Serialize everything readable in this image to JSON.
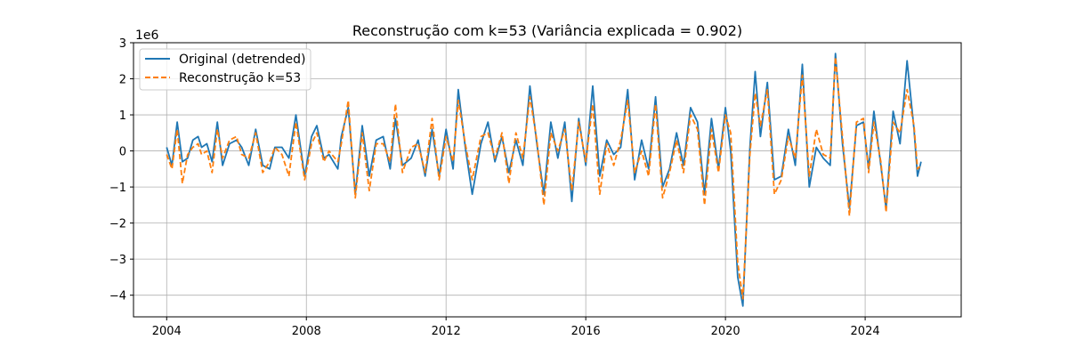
{
  "chart_data": {
    "type": "line",
    "title": "Reconstrução com k=53 (Variância explicada = 0.902)",
    "xlabel": "",
    "ylabel": "",
    "y_scale_label": "1e6",
    "xlim": [
      2003.05,
      2026.75
    ],
    "ylim": [
      -4.6,
      3.0
    ],
    "x_ticks": [
      {
        "value": 2004,
        "label": "2004"
      },
      {
        "value": 2008,
        "label": "2008"
      },
      {
        "value": 2012,
        "label": "2012"
      },
      {
        "value": 2016,
        "label": "2016"
      },
      {
        "value": 2020,
        "label": "2020"
      },
      {
        "value": 2024,
        "label": "2024"
      }
    ],
    "y_ticks": [
      {
        "value": 3,
        "label": "3"
      },
      {
        "value": 2,
        "label": "2"
      },
      {
        "value": 1,
        "label": "1"
      },
      {
        "value": 0,
        "label": "0"
      },
      {
        "value": -1,
        "label": "−1"
      },
      {
        "value": -2,
        "label": "−2"
      },
      {
        "value": -3,
        "label": "−3"
      },
      {
        "value": -4,
        "label": "−4"
      }
    ],
    "grid": true,
    "legend_position": "top-left",
    "series": [
      {
        "name": "Original (detrended)",
        "color": "#1f77b4",
        "style": "solid",
        "points": [
          [
            2004.0,
            0.1
          ],
          [
            2004.15,
            -0.4
          ],
          [
            2004.3,
            0.8
          ],
          [
            2004.45,
            -0.3
          ],
          [
            2004.6,
            -0.2
          ],
          [
            2004.75,
            0.3
          ],
          [
            2004.9,
            0.4
          ],
          [
            2005.0,
            0.1
          ],
          [
            2005.15,
            0.2
          ],
          [
            2005.3,
            -0.3
          ],
          [
            2005.45,
            0.8
          ],
          [
            2005.6,
            -0.4
          ],
          [
            2005.8,
            0.2
          ],
          [
            2006.0,
            0.3
          ],
          [
            2006.15,
            0.1
          ],
          [
            2006.35,
            -0.4
          ],
          [
            2006.55,
            0.6
          ],
          [
            2006.75,
            -0.4
          ],
          [
            2006.95,
            -0.5
          ],
          [
            2007.1,
            0.1
          ],
          [
            2007.3,
            0.1
          ],
          [
            2007.5,
            -0.2
          ],
          [
            2007.7,
            1.0
          ],
          [
            2007.95,
            -0.7
          ],
          [
            2008.15,
            0.4
          ],
          [
            2008.3,
            0.7
          ],
          [
            2008.5,
            -0.2
          ],
          [
            2008.65,
            -0.1
          ],
          [
            2008.9,
            -0.5
          ],
          [
            2009.0,
            0.4
          ],
          [
            2009.2,
            1.2
          ],
          [
            2009.4,
            -1.2
          ],
          [
            2009.6,
            0.7
          ],
          [
            2009.8,
            -0.7
          ],
          [
            2010.0,
            0.3
          ],
          [
            2010.2,
            0.4
          ],
          [
            2010.4,
            -0.5
          ],
          [
            2010.55,
            0.9
          ],
          [
            2010.75,
            -0.4
          ],
          [
            2011.0,
            -0.2
          ],
          [
            2011.2,
            0.3
          ],
          [
            2011.4,
            -0.7
          ],
          [
            2011.6,
            0.6
          ],
          [
            2011.8,
            -0.7
          ],
          [
            2012.0,
            0.6
          ],
          [
            2012.2,
            -0.5
          ],
          [
            2012.35,
            1.7
          ],
          [
            2012.55,
            0.1
          ],
          [
            2012.75,
            -1.2
          ],
          [
            2013.0,
            0.2
          ],
          [
            2013.2,
            0.8
          ],
          [
            2013.4,
            -0.3
          ],
          [
            2013.6,
            0.4
          ],
          [
            2013.8,
            -0.6
          ],
          [
            2014.0,
            0.3
          ],
          [
            2014.2,
            -0.4
          ],
          [
            2014.4,
            1.8
          ],
          [
            2014.6,
            0.2
          ],
          [
            2014.8,
            -1.2
          ],
          [
            2015.0,
            0.8
          ],
          [
            2015.2,
            -0.2
          ],
          [
            2015.4,
            0.8
          ],
          [
            2015.6,
            -1.4
          ],
          [
            2015.8,
            0.9
          ],
          [
            2016.0,
            -0.4
          ],
          [
            2016.2,
            1.8
          ],
          [
            2016.4,
            -0.7
          ],
          [
            2016.6,
            0.3
          ],
          [
            2016.8,
            -0.1
          ],
          [
            2017.0,
            0.1
          ],
          [
            2017.2,
            1.7
          ],
          [
            2017.4,
            -0.8
          ],
          [
            2017.6,
            0.3
          ],
          [
            2017.8,
            -0.5
          ],
          [
            2018.0,
            1.5
          ],
          [
            2018.2,
            -1.0
          ],
          [
            2018.4,
            -0.5
          ],
          [
            2018.6,
            0.5
          ],
          [
            2018.8,
            -0.4
          ],
          [
            2019.0,
            1.2
          ],
          [
            2019.2,
            0.8
          ],
          [
            2019.4,
            -1.2
          ],
          [
            2019.6,
            0.9
          ],
          [
            2019.8,
            -0.5
          ],
          [
            2020.0,
            1.2
          ],
          [
            2020.15,
            0.0
          ],
          [
            2020.35,
            -3.5
          ],
          [
            2020.5,
            -4.3
          ],
          [
            2020.7,
            0.1
          ],
          [
            2020.85,
            2.2
          ],
          [
            2021.0,
            0.4
          ],
          [
            2021.2,
            1.9
          ],
          [
            2021.4,
            -0.8
          ],
          [
            2021.6,
            -0.7
          ],
          [
            2021.8,
            0.6
          ],
          [
            2022.0,
            -0.4
          ],
          [
            2022.2,
            2.4
          ],
          [
            2022.4,
            -1.0
          ],
          [
            2022.6,
            0.1
          ],
          [
            2022.8,
            -0.2
          ],
          [
            2023.0,
            -0.4
          ],
          [
            2023.15,
            2.7
          ],
          [
            2023.35,
            0.2
          ],
          [
            2023.55,
            -1.6
          ],
          [
            2023.75,
            0.7
          ],
          [
            2023.95,
            0.8
          ],
          [
            2024.1,
            -0.5
          ],
          [
            2024.25,
            1.1
          ],
          [
            2024.45,
            -0.4
          ],
          [
            2024.6,
            -1.6
          ],
          [
            2024.8,
            1.1
          ],
          [
            2025.0,
            0.2
          ],
          [
            2025.2,
            2.5
          ],
          [
            2025.4,
            0.6
          ],
          [
            2025.5,
            -0.7
          ],
          [
            2025.6,
            -0.3
          ]
        ]
      },
      {
        "name": "Reconstrução k=53",
        "color": "#ff7f0e",
        "style": "dashed",
        "points": [
          [
            2004.0,
            -0.1
          ],
          [
            2004.15,
            -0.5
          ],
          [
            2004.3,
            0.6
          ],
          [
            2004.45,
            -0.9
          ],
          [
            2004.6,
            -0.1
          ],
          [
            2004.75,
            0.1
          ],
          [
            2004.9,
            0.2
          ],
          [
            2005.0,
            -0.1
          ],
          [
            2005.15,
            0.0
          ],
          [
            2005.3,
            -0.6
          ],
          [
            2005.45,
            0.6
          ],
          [
            2005.6,
            -0.2
          ],
          [
            2005.8,
            0.3
          ],
          [
            2006.0,
            0.4
          ],
          [
            2006.15,
            -0.1
          ],
          [
            2006.35,
            -0.2
          ],
          [
            2006.55,
            0.5
          ],
          [
            2006.75,
            -0.6
          ],
          [
            2006.95,
            -0.3
          ],
          [
            2007.1,
            0.1
          ],
          [
            2007.3,
            -0.1
          ],
          [
            2007.5,
            -0.7
          ],
          [
            2007.7,
            0.8
          ],
          [
            2007.95,
            -0.8
          ],
          [
            2008.15,
            0.2
          ],
          [
            2008.3,
            0.5
          ],
          [
            2008.5,
            -0.3
          ],
          [
            2008.65,
            0.0
          ],
          [
            2008.9,
            -0.3
          ],
          [
            2009.0,
            0.2
          ],
          [
            2009.2,
            1.4
          ],
          [
            2009.4,
            -1.3
          ],
          [
            2009.6,
            0.5
          ],
          [
            2009.8,
            -1.1
          ],
          [
            2010.0,
            0.2
          ],
          [
            2010.2,
            0.2
          ],
          [
            2010.4,
            -0.3
          ],
          [
            2010.55,
            1.3
          ],
          [
            2010.75,
            -0.6
          ],
          [
            2011.0,
            0.1
          ],
          [
            2011.2,
            0.2
          ],
          [
            2011.4,
            -0.6
          ],
          [
            2011.6,
            0.9
          ],
          [
            2011.8,
            -0.8
          ],
          [
            2012.0,
            0.4
          ],
          [
            2012.2,
            -0.3
          ],
          [
            2012.35,
            1.4
          ],
          [
            2012.55,
            0.2
          ],
          [
            2012.75,
            -0.8
          ],
          [
            2013.0,
            0.4
          ],
          [
            2013.2,
            0.5
          ],
          [
            2013.4,
            -0.2
          ],
          [
            2013.6,
            0.5
          ],
          [
            2013.8,
            -0.9
          ],
          [
            2014.0,
            0.5
          ],
          [
            2014.2,
            -0.2
          ],
          [
            2014.4,
            1.5
          ],
          [
            2014.6,
            0.3
          ],
          [
            2014.8,
            -1.5
          ],
          [
            2015.0,
            0.5
          ],
          [
            2015.2,
            0.0
          ],
          [
            2015.4,
            0.6
          ],
          [
            2015.6,
            -1.1
          ],
          [
            2015.8,
            0.8
          ],
          [
            2016.0,
            -0.3
          ],
          [
            2016.2,
            1.3
          ],
          [
            2016.4,
            -1.2
          ],
          [
            2016.6,
            0.2
          ],
          [
            2016.8,
            -0.4
          ],
          [
            2017.0,
            0.3
          ],
          [
            2017.2,
            1.4
          ],
          [
            2017.4,
            -0.6
          ],
          [
            2017.6,
            0.0
          ],
          [
            2017.8,
            -0.7
          ],
          [
            2018.0,
            1.3
          ],
          [
            2018.2,
            -1.3
          ],
          [
            2018.4,
            -0.6
          ],
          [
            2018.6,
            0.3
          ],
          [
            2018.8,
            -0.6
          ],
          [
            2019.0,
            1.0
          ],
          [
            2019.2,
            0.6
          ],
          [
            2019.4,
            -1.5
          ],
          [
            2019.6,
            0.6
          ],
          [
            2019.8,
            -0.6
          ],
          [
            2020.0,
            1.0
          ],
          [
            2020.15,
            0.5
          ],
          [
            2020.35,
            -3.1
          ],
          [
            2020.5,
            -4.1
          ],
          [
            2020.7,
            -0.1
          ],
          [
            2020.85,
            1.6
          ],
          [
            2021.0,
            0.7
          ],
          [
            2021.2,
            1.7
          ],
          [
            2021.4,
            -1.2
          ],
          [
            2021.6,
            -0.8
          ],
          [
            2021.8,
            0.4
          ],
          [
            2022.0,
            -0.2
          ],
          [
            2022.2,
            2.1
          ],
          [
            2022.4,
            -0.7
          ],
          [
            2022.6,
            0.6
          ],
          [
            2022.8,
            -0.1
          ],
          [
            2023.0,
            -0.2
          ],
          [
            2023.15,
            2.6
          ],
          [
            2023.35,
            0.4
          ],
          [
            2023.55,
            -1.8
          ],
          [
            2023.75,
            0.8
          ],
          [
            2023.95,
            0.9
          ],
          [
            2024.1,
            -0.6
          ],
          [
            2024.25,
            0.8
          ],
          [
            2024.45,
            -0.3
          ],
          [
            2024.6,
            -1.7
          ],
          [
            2024.8,
            0.8
          ],
          [
            2025.0,
            0.5
          ],
          [
            2025.2,
            1.7
          ],
          [
            2025.4,
            0.7
          ],
          [
            2025.5,
            -0.5
          ],
          [
            2025.6,
            -0.4
          ]
        ]
      }
    ]
  }
}
